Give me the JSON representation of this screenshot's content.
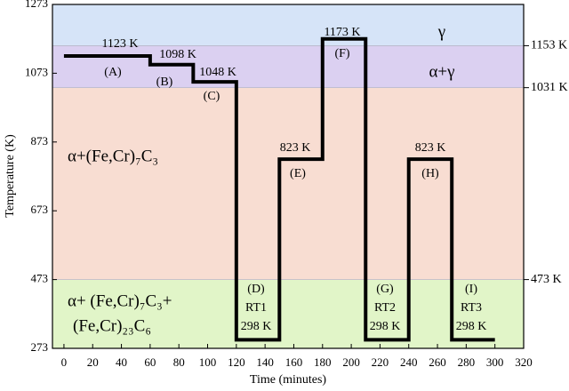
{
  "chart_data": {
    "type": "line",
    "xlabel": "Time (minutes)",
    "ylabel": "Temperature (K)",
    "x": [
      0,
      60,
      60,
      90,
      90,
      120,
      120,
      150,
      150,
      180,
      180,
      210,
      210,
      240,
      240,
      270,
      270,
      300
    ],
    "series": [
      {
        "color": "#000000",
        "values": [
          1123,
          1123,
          1098,
          1098,
          1048,
          1048,
          298,
          298,
          823,
          823,
          1173,
          1173,
          298,
          298,
          823,
          823,
          298,
          298
        ]
      }
    ],
    "xlim": [
      -8,
      320
    ],
    "xticks": [
      0,
      20,
      40,
      60,
      80,
      100,
      120,
      140,
      160,
      180,
      200,
      220,
      240,
      260,
      280,
      300,
      320
    ],
    "ylim": [
      273,
      1273
    ],
    "yticks": [
      273,
      473,
      673,
      873,
      1073,
      1273
    ],
    "y2lim": [
      273,
      1273
    ],
    "y2ticks": [
      {
        "value": 1153,
        "label": "1153 K"
      },
      {
        "value": 1031,
        "label": "1031 K"
      },
      {
        "value": 473,
        "label": "473 K"
      }
    ],
    "regions": [
      {
        "from": 1153,
        "to": 1273,
        "color": "#d6e4f8",
        "label": [
          "γ"
        ]
      },
      {
        "from": 1031,
        "to": 1153,
        "color": "#dbd0f1",
        "label": [
          "α+γ"
        ]
      },
      {
        "from": 473,
        "to": 1031,
        "color": "#f8ddd2",
        "label": [
          "α+(Fe,Cr)₇C₃"
        ]
      },
      {
        "from": 273,
        "to": 473,
        "color": "#e1f5c8",
        "label": [
          "α+ (Fe,Cr)₇C₃+",
          "(Fe,Cr)₂₃C₆"
        ]
      }
    ],
    "annotations": [
      "1123 K",
      "(A)",
      "1098 K",
      "(B)",
      "1048 K",
      "(C)",
      "823 K",
      "(E)",
      "1173 K",
      "(F)",
      "823 K",
      "(H)",
      "(D)",
      "RT1",
      "298 K",
      "(G)",
      "RT2",
      "298 K",
      "(I)",
      "RT3",
      "298 K"
    ]
  }
}
